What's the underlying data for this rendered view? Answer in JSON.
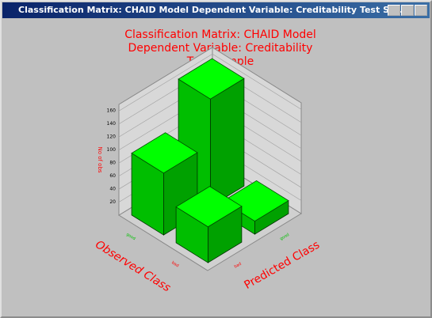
{
  "window_title": "Classification Matrix: CHAID Model Dependent Variable: Creditability Test Sa...",
  "chart_data": {
    "type": "bar3d",
    "title": [
      "Classification Matrix: CHAID Model",
      "Dependent Variable: Creditability",
      "Test Sample"
    ],
    "x_label": "Predicted Class",
    "y_label": "Observed Class",
    "z_label": "No of obs",
    "categories": [
      "bad",
      "good"
    ],
    "series": [
      {
        "name": "good",
        "values": [
          95,
          165
        ]
      },
      {
        "name": "bad",
        "values": [
          55,
          20
        ]
      }
    ],
    "color": "#00e000",
    "zlim": [
      0,
      170
    ],
    "zticks": [
      20,
      40,
      60,
      80,
      100,
      120,
      140,
      160
    ],
    "grid": true
  }
}
